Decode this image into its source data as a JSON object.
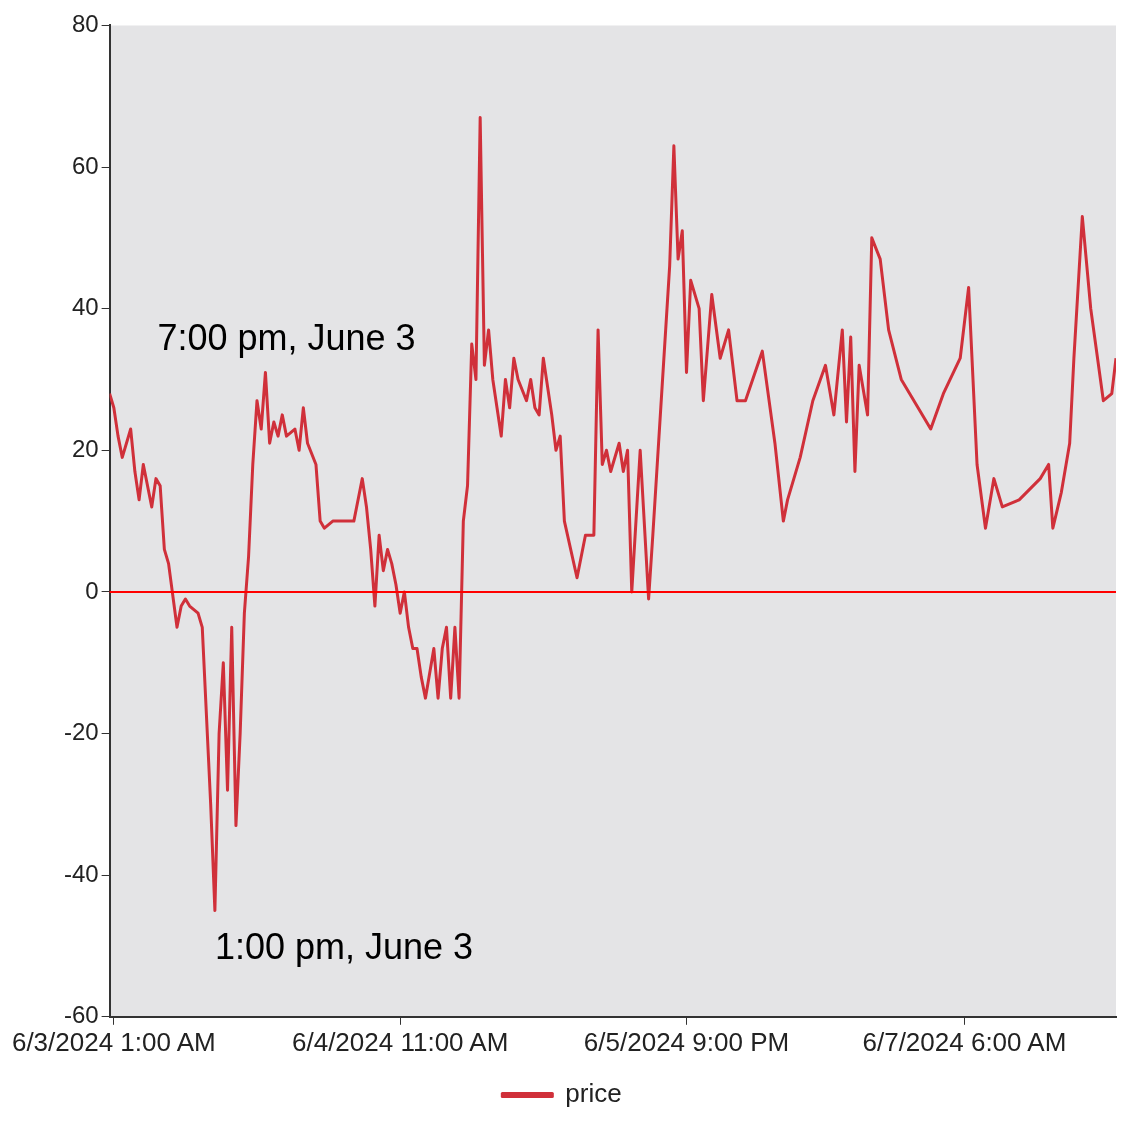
{
  "chart_data": {
    "type": "line",
    "xlim": [
      "2024-06-03T00:30",
      "2024-06-08T00:00"
    ],
    "xticks": [
      {
        "value": "2024-06-03T01:00",
        "label": "6/3/2024 1:00 AM"
      },
      {
        "value": "2024-06-04T11:00",
        "label": "6/4/2024 11:00 AM"
      },
      {
        "value": "2024-06-05T21:00",
        "label": "6/5/2024 9:00 PM"
      },
      {
        "value": "2024-06-07T06:00",
        "label": "6/7/2024 6:00 AM"
      }
    ],
    "ylim": [
      -60,
      80
    ],
    "yticks": [
      -60,
      -40,
      -20,
      0,
      20,
      40,
      60,
      80
    ],
    "grid": false,
    "legend": "bottom",
    "marker": "none",
    "line_style": "solid",
    "ref_lines": [
      {
        "axis": "y",
        "value": 0,
        "color": "#ff0000"
      }
    ],
    "annotations": [
      {
        "text": "7:00 pm, June 3",
        "x": "2024-06-03T19:00",
        "y": 31
      },
      {
        "text": "1:00 pm, June 3",
        "x": "2024-06-03T13:00",
        "y": -45
      }
    ],
    "series": [
      {
        "name": "price",
        "color": "#d0303a",
        "x": [
          "2024-06-03T00:30",
          "2024-06-03T01:00",
          "2024-06-03T01:30",
          "2024-06-03T02:00",
          "2024-06-03T03:00",
          "2024-06-03T03:30",
          "2024-06-03T04:00",
          "2024-06-03T04:30",
          "2024-06-03T05:30",
          "2024-06-03T06:00",
          "2024-06-03T06:30",
          "2024-06-03T07:00",
          "2024-06-03T07:30",
          "2024-06-03T08:30",
          "2024-06-03T09:00",
          "2024-06-03T09:30",
          "2024-06-03T10:00",
          "2024-06-03T11:00",
          "2024-06-03T11:30",
          "2024-06-03T12:30",
          "2024-06-03T13:00",
          "2024-06-03T13:30",
          "2024-06-03T14:00",
          "2024-06-03T14:30",
          "2024-06-03T15:00",
          "2024-06-03T15:30",
          "2024-06-03T16:00",
          "2024-06-03T16:30",
          "2024-06-03T17:00",
          "2024-06-03T17:30",
          "2024-06-03T18:00",
          "2024-06-03T18:30",
          "2024-06-03T19:00",
          "2024-06-03T19:30",
          "2024-06-03T20:00",
          "2024-06-03T20:30",
          "2024-06-03T21:00",
          "2024-06-03T21:30",
          "2024-06-03T22:30",
          "2024-06-03T23:00",
          "2024-06-03T23:30",
          "2024-06-04T00:00",
          "2024-06-04T01:00",
          "2024-06-04T01:30",
          "2024-06-04T02:00",
          "2024-06-04T03:00",
          "2024-06-04T04:30",
          "2024-06-04T05:30",
          "2024-06-04T06:30",
          "2024-06-04T07:00",
          "2024-06-04T07:30",
          "2024-06-04T08:00",
          "2024-06-04T08:30",
          "2024-06-04T09:00",
          "2024-06-04T09:30",
          "2024-06-04T10:00",
          "2024-06-04T10:30",
          "2024-06-04T11:00",
          "2024-06-04T11:30",
          "2024-06-04T12:00",
          "2024-06-04T12:30",
          "2024-06-04T13:00",
          "2024-06-04T13:30",
          "2024-06-04T14:00",
          "2024-06-04T15:00",
          "2024-06-04T15:30",
          "2024-06-04T16:00",
          "2024-06-04T16:30",
          "2024-06-04T17:00",
          "2024-06-04T17:30",
          "2024-06-04T18:00",
          "2024-06-04T18:30",
          "2024-06-04T19:00",
          "2024-06-04T19:30",
          "2024-06-04T20:00",
          "2024-06-04T20:30",
          "2024-06-04T21:00",
          "2024-06-04T21:30",
          "2024-06-04T22:00",
          "2024-06-04T22:30",
          "2024-06-04T23:00",
          "2024-06-04T23:30",
          "2024-06-05T00:00",
          "2024-06-05T00:30",
          "2024-06-05T01:00",
          "2024-06-05T02:00",
          "2024-06-05T02:30",
          "2024-06-05T03:00",
          "2024-06-05T03:30",
          "2024-06-05T04:00",
          "2024-06-05T05:00",
          "2024-06-05T05:30",
          "2024-06-05T06:00",
          "2024-06-05T06:30",
          "2024-06-05T08:00",
          "2024-06-05T09:00",
          "2024-06-05T10:00",
          "2024-06-05T10:30",
          "2024-06-05T11:00",
          "2024-06-05T11:30",
          "2024-06-05T12:00",
          "2024-06-05T13:00",
          "2024-06-05T13:30",
          "2024-06-05T14:00",
          "2024-06-05T14:30",
          "2024-06-05T15:30",
          "2024-06-05T16:30",
          "2024-06-05T17:00",
          "2024-06-05T18:00",
          "2024-06-05T19:00",
          "2024-06-05T19:30",
          "2024-06-05T20:00",
          "2024-06-05T20:30",
          "2024-06-05T21:00",
          "2024-06-05T21:30",
          "2024-06-05T22:30",
          "2024-06-05T23:00",
          "2024-06-06T00:00",
          "2024-06-06T01:00",
          "2024-06-06T02:00",
          "2024-06-06T03:00",
          "2024-06-06T04:00",
          "2024-06-06T06:00",
          "2024-06-06T07:30",
          "2024-06-06T08:30",
          "2024-06-06T09:00",
          "2024-06-06T10:30",
          "2024-06-06T12:00",
          "2024-06-06T13:30",
          "2024-06-06T14:30",
          "2024-06-06T15:30",
          "2024-06-06T16:00",
          "2024-06-06T16:30",
          "2024-06-06T17:00",
          "2024-06-06T17:30",
          "2024-06-06T18:30",
          "2024-06-06T19:00",
          "2024-06-06T20:00",
          "2024-06-06T21:00",
          "2024-06-06T22:30",
          "2024-06-07T00:30",
          "2024-06-07T02:00",
          "2024-06-07T03:30",
          "2024-06-07T05:30",
          "2024-06-07T06:30",
          "2024-06-07T07:30",
          "2024-06-07T08:30",
          "2024-06-07T09:30",
          "2024-06-07T10:30",
          "2024-06-07T12:30",
          "2024-06-07T15:00",
          "2024-06-07T16:00",
          "2024-06-07T16:30",
          "2024-06-07T17:30",
          "2024-06-07T18:30",
          "2024-06-07T19:00",
          "2024-06-07T20:00",
          "2024-06-07T21:00",
          "2024-06-07T22:30",
          "2024-06-07T23:30",
          "2024-06-08T00:00"
        ],
        "values": [
          28,
          26,
          22,
          19,
          23,
          17,
          13,
          18,
          12,
          16,
          15,
          6,
          4,
          -5,
          -2,
          -1,
          -2,
          -3,
          -5,
          -30,
          -45,
          -20,
          -10,
          -28,
          -5,
          -33,
          -20,
          -3,
          5,
          18,
          27,
          23,
          31,
          21,
          24,
          22,
          25,
          22,
          23,
          20,
          26,
          21,
          18,
          10,
          9,
          10,
          10,
          10,
          16,
          12,
          6,
          -2,
          8,
          3,
          6,
          4,
          1,
          -3,
          0,
          -5,
          -8,
          -8,
          -12,
          -15,
          -8,
          -15,
          -8,
          -5,
          -15,
          -5,
          -15,
          10,
          15,
          35,
          30,
          67,
          32,
          37,
          30,
          26,
          22,
          30,
          26,
          33,
          30,
          27,
          30,
          26,
          25,
          33,
          25,
          20,
          22,
          10,
          2,
          8,
          8,
          37,
          18,
          20,
          17,
          21,
          17,
          20,
          0,
          20,
          -1,
          8,
          27,
          46,
          63,
          47,
          51,
          31,
          44,
          40,
          27,
          42,
          33,
          37,
          27,
          27,
          34,
          21,
          10,
          13,
          19,
          27,
          32,
          25,
          37,
          24,
          36,
          17,
          32,
          25,
          50,
          47,
          37,
          30,
          26,
          23,
          28,
          33,
          43,
          18,
          9,
          16,
          12,
          13,
          16,
          18,
          9,
          14,
          21,
          33,
          53,
          40,
          27,
          28,
          33
        ]
      }
    ]
  }
}
